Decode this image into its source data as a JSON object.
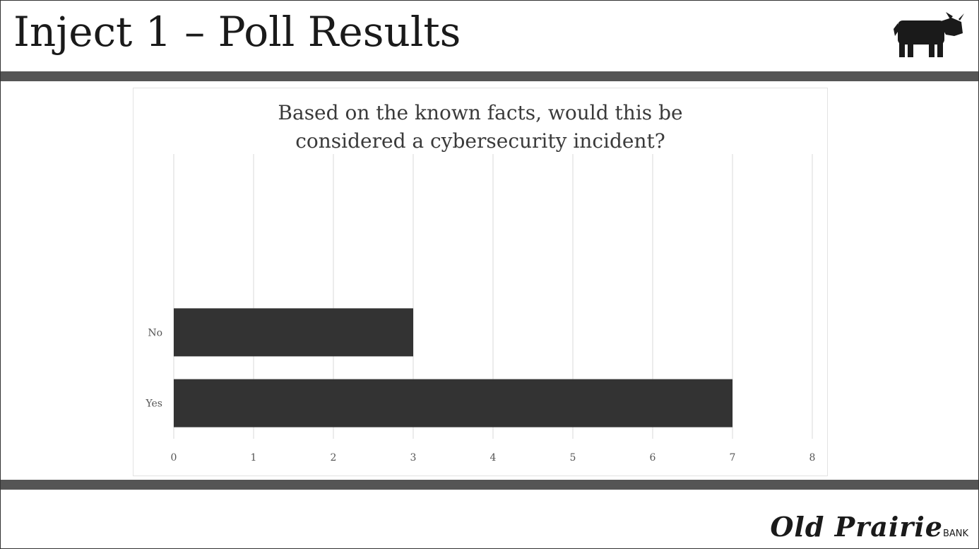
{
  "slide": {
    "title": "Inject 1 – Poll Results",
    "logo_icon": "cow-icon"
  },
  "brand": {
    "name": "Old Prairie",
    "suffix": "BANK"
  },
  "colors": {
    "bar": "#333333",
    "band": "#555555",
    "grid": "#d9d9d9",
    "text": "#1a1a1a"
  },
  "chart_data": {
    "type": "bar",
    "orientation": "horizontal",
    "title_lines": [
      "Based on the known facts, would this be",
      "considered a cybersecurity incident?"
    ],
    "categories": [
      "No",
      "Yes"
    ],
    "values": [
      3,
      7
    ],
    "xlim": [
      0,
      8
    ],
    "xticks": [
      0,
      1,
      2,
      3,
      4,
      5,
      6,
      7,
      8
    ],
    "grid": "vertical",
    "legend": "none"
  }
}
